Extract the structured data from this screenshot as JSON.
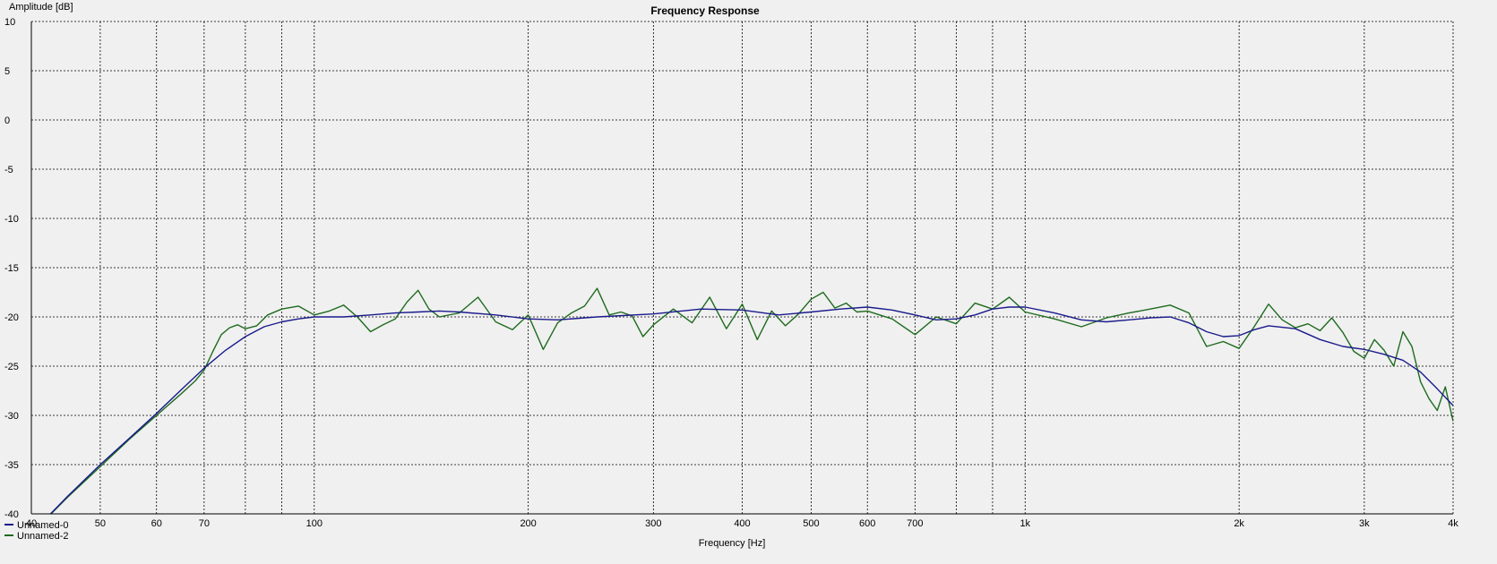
{
  "chart_data": {
    "type": "line",
    "title": "Frequency Response",
    "xlabel": "Frequency [Hz]",
    "ylabel": "Amplitude [dB]",
    "x_scale": "log",
    "xlim": [
      40,
      4000
    ],
    "ylim": [
      -40,
      10
    ],
    "x_ticks": [
      {
        "value": 40,
        "label": "40"
      },
      {
        "value": 50,
        "label": "50"
      },
      {
        "value": 60,
        "label": "60"
      },
      {
        "value": 70,
        "label": "70"
      },
      {
        "value": 100,
        "label": "100"
      },
      {
        "value": 200,
        "label": "200"
      },
      {
        "value": 300,
        "label": "300"
      },
      {
        "value": 400,
        "label": "400"
      },
      {
        "value": 500,
        "label": "500"
      },
      {
        "value": 600,
        "label": "600"
      },
      {
        "value": 700,
        "label": "700"
      },
      {
        "value": 1000,
        "label": "1k"
      },
      {
        "value": 2000,
        "label": "2k"
      },
      {
        "value": 3000,
        "label": "3k"
      },
      {
        "value": 4000,
        "label": "4k"
      }
    ],
    "x_minor_grid": [
      80,
      90,
      800,
      900
    ],
    "y_ticks": [
      10,
      5,
      0,
      -5,
      -10,
      -15,
      -20,
      -25,
      -30,
      -35,
      -40
    ],
    "grid": true,
    "legend_position": "bottom-left",
    "series": [
      {
        "name": "Unnamed-0",
        "color": "#1a1a8c",
        "x": [
          40,
          45,
          50,
          55,
          60,
          65,
          70,
          75,
          80,
          85,
          90,
          95,
          100,
          110,
          120,
          130,
          140,
          150,
          160,
          180,
          200,
          220,
          250,
          300,
          350,
          400,
          450,
          500,
          550,
          600,
          650,
          700,
          750,
          800,
          850,
          900,
          950,
          1000,
          1100,
          1200,
          1300,
          1400,
          1500,
          1600,
          1700,
          1800,
          1900,
          2000,
          2100,
          2200,
          2400,
          2600,
          2800,
          3000,
          3200,
          3400,
          3600,
          3800,
          4000
        ],
        "y": [
          -42.0,
          -38.2,
          -35.0,
          -32.3,
          -29.8,
          -27.4,
          -25.2,
          -23.4,
          -22.0,
          -21.0,
          -20.5,
          -20.2,
          -20.0,
          -20.0,
          -19.8,
          -19.6,
          -19.5,
          -19.4,
          -19.5,
          -19.8,
          -20.2,
          -20.3,
          -20.0,
          -19.7,
          -19.2,
          -19.3,
          -19.8,
          -19.5,
          -19.2,
          -19.0,
          -19.3,
          -19.8,
          -20.3,
          -20.2,
          -19.8,
          -19.2,
          -19.0,
          -19.0,
          -19.6,
          -20.3,
          -20.5,
          -20.3,
          -20.1,
          -20.0,
          -20.6,
          -21.5,
          -22.0,
          -21.9,
          -21.3,
          -20.9,
          -21.2,
          -22.3,
          -23.0,
          -23.3,
          -23.8,
          -24.4,
          -25.6,
          -27.3,
          -29.0
        ]
      },
      {
        "name": "Unnamed-2",
        "color": "#1e6b1e",
        "x": [
          40,
          45,
          50,
          55,
          60,
          65,
          68,
          70,
          72,
          74,
          76,
          78,
          80,
          83,
          86,
          90,
          95,
          100,
          105,
          110,
          115,
          120,
          125,
          130,
          135,
          140,
          145,
          150,
          160,
          170,
          180,
          190,
          200,
          210,
          220,
          230,
          240,
          250,
          260,
          270,
          280,
          290,
          300,
          320,
          340,
          360,
          380,
          400,
          420,
          440,
          460,
          480,
          500,
          520,
          540,
          560,
          580,
          600,
          650,
          700,
          750,
          800,
          850,
          900,
          950,
          1000,
          1100,
          1200,
          1300,
          1400,
          1500,
          1600,
          1700,
          1800,
          1900,
          2000,
          2100,
          2200,
          2300,
          2400,
          2500,
          2600,
          2700,
          2800,
          2900,
          3000,
          3100,
          3200,
          3300,
          3400,
          3500,
          3600,
          3700,
          3800,
          3900,
          4000
        ],
        "y": [
          -42.0,
          -38.3,
          -35.2,
          -32.4,
          -30.0,
          -27.8,
          -26.5,
          -25.4,
          -23.5,
          -21.8,
          -21.1,
          -20.8,
          -21.2,
          -20.9,
          -19.8,
          -19.2,
          -18.9,
          -19.8,
          -19.4,
          -18.8,
          -20.0,
          -21.5,
          -20.8,
          -20.2,
          -18.5,
          -17.3,
          -19.2,
          -20.0,
          -19.6,
          -18.0,
          -20.5,
          -21.3,
          -19.8,
          -23.3,
          -20.6,
          -19.6,
          -18.9,
          -17.1,
          -19.8,
          -19.5,
          -19.9,
          -22.0,
          -20.8,
          -19.2,
          -20.6,
          -18.0,
          -21.2,
          -18.7,
          -22.3,
          -19.4,
          -20.9,
          -19.7,
          -18.2,
          -17.5,
          -19.1,
          -18.6,
          -19.5,
          -19.4,
          -20.2,
          -21.8,
          -20.0,
          -20.7,
          -18.6,
          -19.2,
          -18.0,
          -19.5,
          -20.2,
          -21.0,
          -20.1,
          -19.6,
          -19.2,
          -18.8,
          -19.6,
          -23.0,
          -22.5,
          -23.2,
          -21.0,
          -18.7,
          -20.3,
          -21.1,
          -20.7,
          -21.4,
          -20.1,
          -21.6,
          -23.5,
          -24.2,
          -22.3,
          -23.4,
          -25.0,
          -21.5,
          -23.0,
          -26.6,
          -28.3,
          -29.5,
          -27.1,
          -30.6
        ]
      }
    ]
  }
}
